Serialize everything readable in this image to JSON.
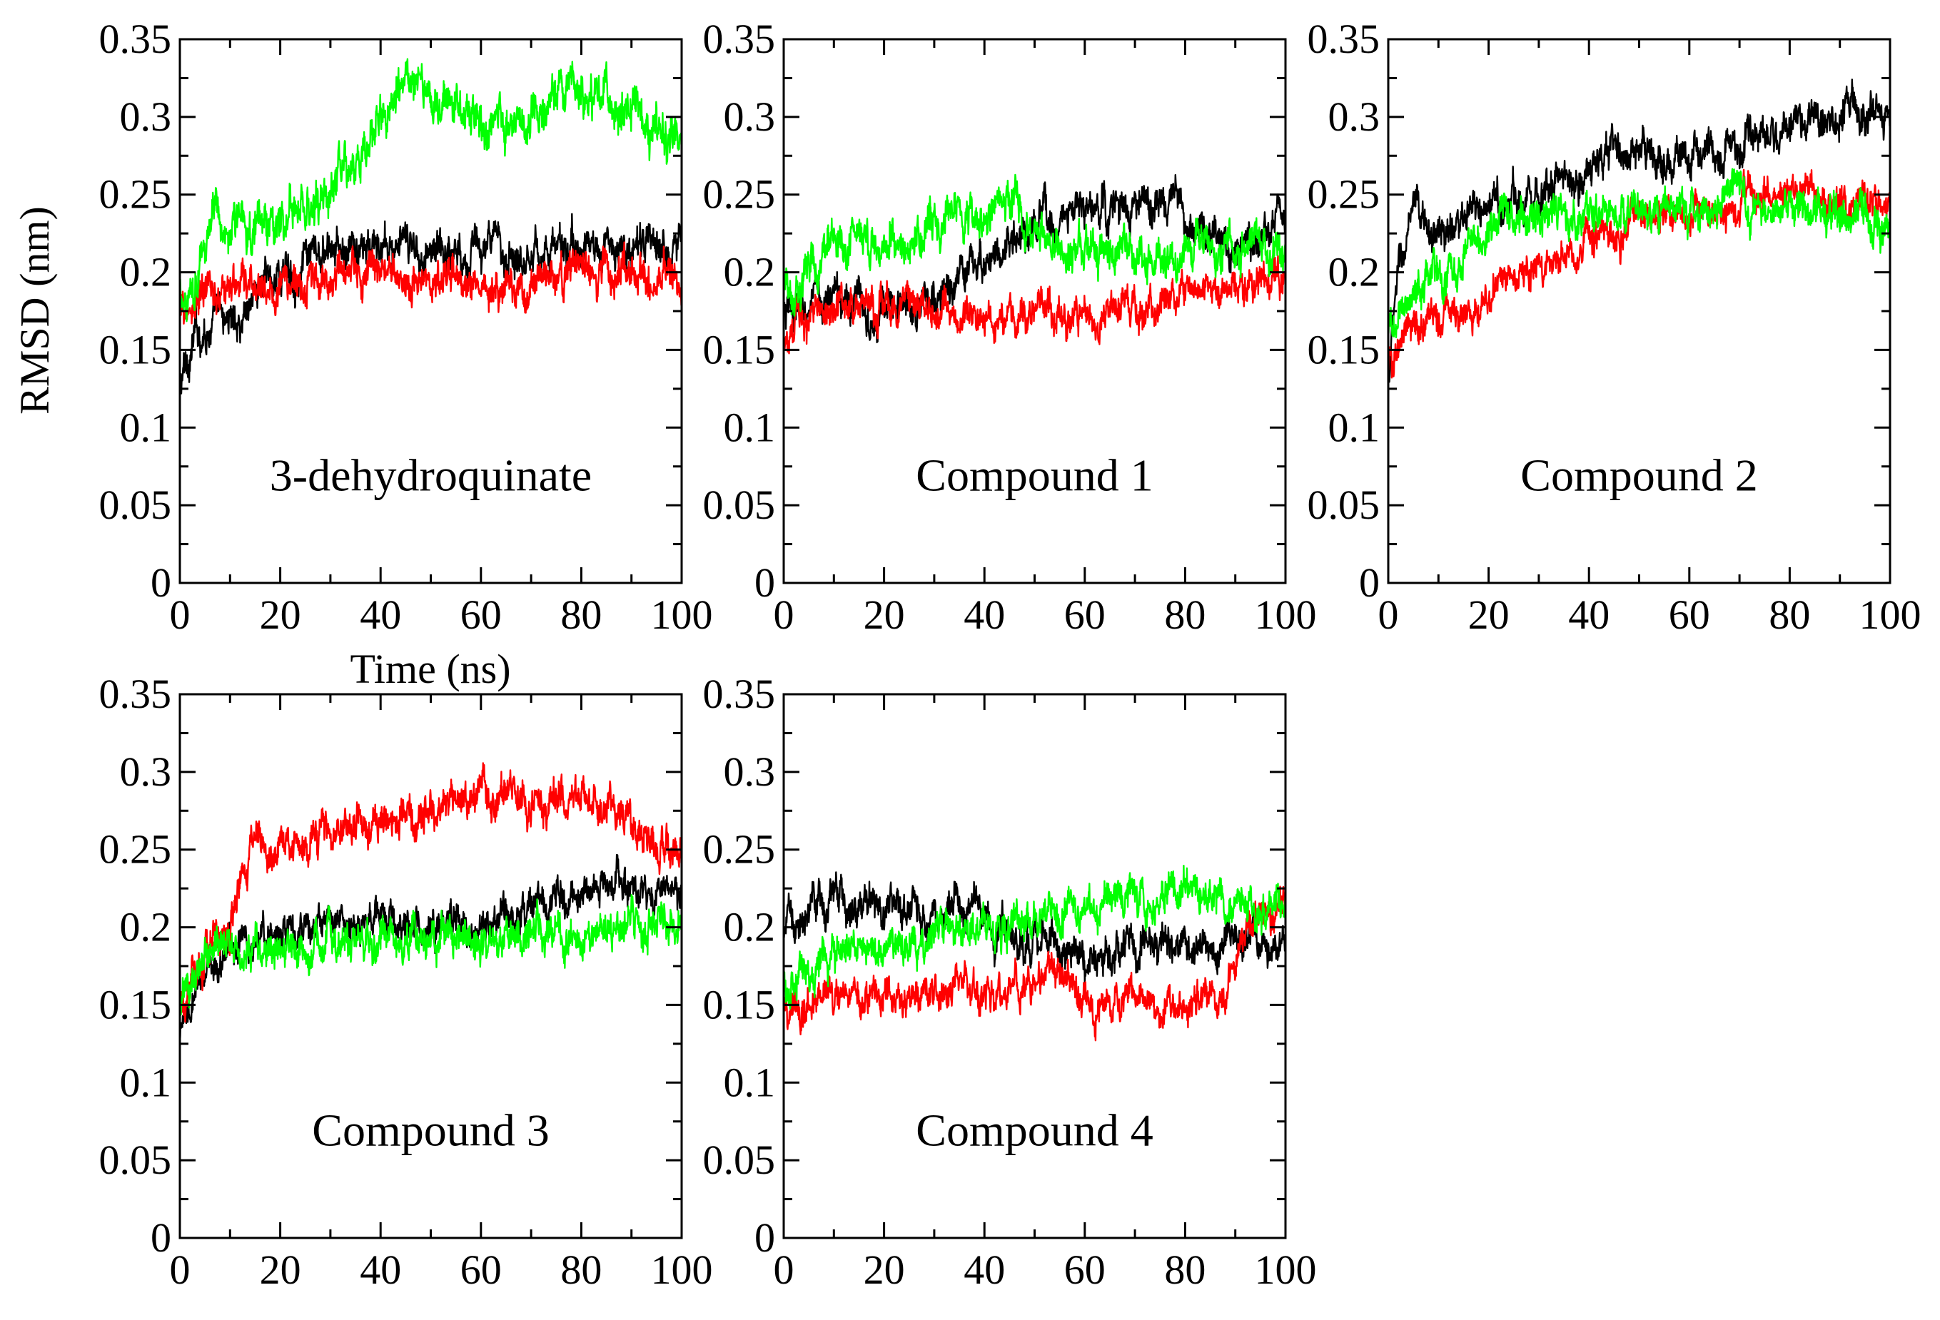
{
  "figure": {
    "ylabel": "RMSD (nm)",
    "xlabel": "Time (ns)"
  },
  "chart_data": [
    {
      "type": "line",
      "label": "3-dehydroquinate",
      "xlim": [
        0,
        100
      ],
      "ylim": [
        0,
        0.35
      ],
      "x_ticks": [
        "0",
        "20",
        "40",
        "60",
        "80",
        "100"
      ],
      "y_ticks": [
        "0",
        "0.05",
        "0.1",
        "0.15",
        "0.2",
        "0.25",
        "0.3",
        "0.35"
      ],
      "series": [
        {
          "name": "black",
          "color": "#000000",
          "noise": 0.012,
          "points": [
            [
              0,
              0.125
            ],
            [
              3,
              0.16
            ],
            [
              8,
              0.17
            ],
            [
              12,
              0.17
            ],
            [
              15,
              0.19
            ],
            [
              20,
              0.2
            ],
            [
              30,
              0.21
            ],
            [
              40,
              0.215
            ],
            [
              50,
              0.215
            ],
            [
              60,
              0.215
            ],
            [
              70,
              0.215
            ],
            [
              80,
              0.215
            ],
            [
              90,
              0.215
            ],
            [
              95,
              0.215
            ],
            [
              100,
              0.225
            ]
          ]
        },
        {
          "name": "red",
          "color": "#ff0000",
          "noise": 0.012,
          "points": [
            [
              0,
              0.17
            ],
            [
              5,
              0.185
            ],
            [
              10,
              0.19
            ],
            [
              20,
              0.19
            ],
            [
              30,
              0.195
            ],
            [
              40,
              0.2
            ],
            [
              50,
              0.195
            ],
            [
              60,
              0.195
            ],
            [
              70,
              0.195
            ],
            [
              80,
              0.2
            ],
            [
              90,
              0.2
            ],
            [
              100,
              0.195
            ]
          ]
        },
        {
          "name": "green",
          "color": "#00ff00",
          "noise": 0.014,
          "points": [
            [
              0,
              0.18
            ],
            [
              3,
              0.2
            ],
            [
              6,
              0.23
            ],
            [
              10,
              0.23
            ],
            [
              20,
              0.235
            ],
            [
              28,
              0.24
            ],
            [
              35,
              0.27
            ],
            [
              40,
              0.305
            ],
            [
              45,
              0.315
            ],
            [
              50,
              0.31
            ],
            [
              60,
              0.3
            ],
            [
              70,
              0.295
            ],
            [
              78,
              0.31
            ],
            [
              82,
              0.315
            ],
            [
              90,
              0.3
            ],
            [
              100,
              0.28
            ]
          ]
        }
      ]
    },
    {
      "type": "line",
      "label": "Compound 1",
      "xlim": [
        0,
        100
      ],
      "ylim": [
        0,
        0.35
      ],
      "x_ticks": [
        "0",
        "20",
        "40",
        "60",
        "80",
        "100"
      ],
      "y_ticks": [
        "0",
        "0.05",
        "0.1",
        "0.15",
        "0.2",
        "0.25",
        "0.3",
        "0.35"
      ],
      "series": [
        {
          "name": "black",
          "color": "#000000",
          "noise": 0.012,
          "points": [
            [
              0,
              0.17
            ],
            [
              10,
              0.185
            ],
            [
              20,
              0.175
            ],
            [
              30,
              0.18
            ],
            [
              40,
              0.21
            ],
            [
              50,
              0.225
            ],
            [
              55,
              0.235
            ],
            [
              60,
              0.24
            ],
            [
              70,
              0.24
            ],
            [
              78,
              0.245
            ],
            [
              80,
              0.225
            ],
            [
              90,
              0.22
            ],
            [
              100,
              0.235
            ]
          ]
        },
        {
          "name": "red",
          "color": "#ff0000",
          "noise": 0.011,
          "points": [
            [
              0,
              0.16
            ],
            [
              10,
              0.18
            ],
            [
              20,
              0.18
            ],
            [
              30,
              0.175
            ],
            [
              40,
              0.17
            ],
            [
              50,
              0.175
            ],
            [
              60,
              0.175
            ],
            [
              70,
              0.18
            ],
            [
              80,
              0.185
            ],
            [
              90,
              0.19
            ],
            [
              100,
              0.195
            ]
          ]
        },
        {
          "name": "green",
          "color": "#00ff00",
          "noise": 0.013,
          "points": [
            [
              0,
              0.19
            ],
            [
              10,
              0.215
            ],
            [
              20,
              0.22
            ],
            [
              30,
              0.225
            ],
            [
              40,
              0.235
            ],
            [
              45,
              0.25
            ],
            [
              50,
              0.225
            ],
            [
              55,
              0.215
            ],
            [
              60,
              0.21
            ],
            [
              70,
              0.215
            ],
            [
              80,
              0.215
            ],
            [
              90,
              0.215
            ],
            [
              100,
              0.215
            ]
          ]
        }
      ]
    },
    {
      "type": "line",
      "label": "Compound 2",
      "xlim": [
        0,
        100
      ],
      "ylim": [
        0,
        0.35
      ],
      "x_ticks": [
        "0",
        "20",
        "40",
        "60",
        "80",
        "100"
      ],
      "y_ticks": [
        "0",
        "0.05",
        "0.1",
        "0.15",
        "0.2",
        "0.25",
        "0.3",
        "0.35"
      ],
      "series": [
        {
          "name": "black",
          "color": "#000000",
          "noise": 0.012,
          "points": [
            [
              0,
              0.13
            ],
            [
              2,
              0.2
            ],
            [
              5,
              0.235
            ],
            [
              10,
              0.225
            ],
            [
              15,
              0.23
            ],
            [
              20,
              0.24
            ],
            [
              30,
              0.255
            ],
            [
              40,
              0.265
            ],
            [
              45,
              0.28
            ],
            [
              50,
              0.27
            ],
            [
              60,
              0.275
            ],
            [
              70,
              0.28
            ],
            [
              80,
              0.295
            ],
            [
              90,
              0.3
            ],
            [
              100,
              0.305
            ]
          ]
        },
        {
          "name": "red",
          "color": "#ff0000",
          "noise": 0.011,
          "points": [
            [
              0,
              0.14
            ],
            [
              5,
              0.165
            ],
            [
              10,
              0.17
            ],
            [
              15,
              0.175
            ],
            [
              20,
              0.19
            ],
            [
              30,
              0.205
            ],
            [
              40,
              0.215
            ],
            [
              50,
              0.235
            ],
            [
              60,
              0.24
            ],
            [
              70,
              0.245
            ],
            [
              80,
              0.25
            ],
            [
              90,
              0.245
            ],
            [
              100,
              0.25
            ]
          ]
        },
        {
          "name": "green",
          "color": "#00ff00",
          "noise": 0.012,
          "points": [
            [
              0,
              0.16
            ],
            [
              5,
              0.19
            ],
            [
              10,
              0.2
            ],
            [
              15,
              0.21
            ],
            [
              20,
              0.23
            ],
            [
              30,
              0.235
            ],
            [
              40,
              0.235
            ],
            [
              50,
              0.24
            ],
            [
              60,
              0.245
            ],
            [
              70,
              0.25
            ],
            [
              80,
              0.24
            ],
            [
              90,
              0.235
            ],
            [
              100,
              0.23
            ]
          ]
        }
      ]
    },
    {
      "type": "line",
      "label": "Compound 3",
      "xlim": [
        0,
        100
      ],
      "ylim": [
        0,
        0.35
      ],
      "x_ticks": [
        "0",
        "20",
        "40",
        "60",
        "80",
        "100"
      ],
      "y_ticks": [
        "0",
        "0.05",
        "0.1",
        "0.15",
        "0.2",
        "0.25",
        "0.3",
        "0.35"
      ],
      "series": [
        {
          "name": "black",
          "color": "#000000",
          "noise": 0.011,
          "points": [
            [
              0,
              0.125
            ],
            [
              5,
              0.17
            ],
            [
              10,
              0.19
            ],
            [
              20,
              0.195
            ],
            [
              30,
              0.2
            ],
            [
              40,
              0.205
            ],
            [
              50,
              0.2
            ],
            [
              60,
              0.205
            ],
            [
              70,
              0.21
            ],
            [
              80,
              0.22
            ],
            [
              85,
              0.235
            ],
            [
              90,
              0.225
            ],
            [
              100,
              0.225
            ]
          ]
        },
        {
          "name": "red",
          "color": "#ff0000",
          "noise": 0.012,
          "points": [
            [
              0,
              0.16
            ],
            [
              5,
              0.18
            ],
            [
              10,
              0.2
            ],
            [
              15,
              0.26
            ],
            [
              20,
              0.25
            ],
            [
              30,
              0.265
            ],
            [
              40,
              0.27
            ],
            [
              50,
              0.275
            ],
            [
              60,
              0.285
            ],
            [
              70,
              0.28
            ],
            [
              80,
              0.28
            ],
            [
              90,
              0.265
            ],
            [
              95,
              0.25
            ],
            [
              100,
              0.25
            ]
          ]
        },
        {
          "name": "green",
          "color": "#00ff00",
          "noise": 0.012,
          "points": [
            [
              0,
              0.15
            ],
            [
              5,
              0.185
            ],
            [
              10,
              0.19
            ],
            [
              20,
              0.185
            ],
            [
              30,
              0.19
            ],
            [
              40,
              0.19
            ],
            [
              50,
              0.195
            ],
            [
              60,
              0.19
            ],
            [
              70,
              0.195
            ],
            [
              80,
              0.195
            ],
            [
              90,
              0.2
            ],
            [
              100,
              0.2
            ]
          ]
        }
      ]
    },
    {
      "type": "line",
      "label": "Compound 4",
      "xlim": [
        0,
        100
      ],
      "ylim": [
        0,
        0.35
      ],
      "x_ticks": [
        "0",
        "20",
        "40",
        "60",
        "80",
        "100"
      ],
      "y_ticks": [
        "0",
        "0.05",
        "0.1",
        "0.15",
        "0.2",
        "0.25",
        "0.3",
        "0.35"
      ],
      "series": [
        {
          "name": "black",
          "color": "#000000",
          "noise": 0.012,
          "points": [
            [
              0,
              0.2
            ],
            [
              5,
              0.21
            ],
            [
              10,
              0.215
            ],
            [
              20,
              0.215
            ],
            [
              30,
              0.205
            ],
            [
              37,
              0.225
            ],
            [
              40,
              0.2
            ],
            [
              50,
              0.195
            ],
            [
              60,
              0.185
            ],
            [
              70,
              0.19
            ],
            [
              80,
              0.19
            ],
            [
              90,
              0.19
            ],
            [
              100,
              0.19
            ]
          ]
        },
        {
          "name": "red",
          "color": "#ff0000",
          "noise": 0.011,
          "points": [
            [
              0,
              0.15
            ],
            [
              10,
              0.155
            ],
            [
              20,
              0.155
            ],
            [
              30,
              0.16
            ],
            [
              40,
              0.16
            ],
            [
              50,
              0.165
            ],
            [
              55,
              0.17
            ],
            [
              60,
              0.15
            ],
            [
              70,
              0.15
            ],
            [
              80,
              0.15
            ],
            [
              88,
              0.16
            ],
            [
              92,
              0.2
            ],
            [
              100,
              0.215
            ]
          ]
        },
        {
          "name": "green",
          "color": "#00ff00",
          "noise": 0.012,
          "points": [
            [
              0,
              0.16
            ],
            [
              10,
              0.185
            ],
            [
              20,
              0.19
            ],
            [
              30,
              0.19
            ],
            [
              40,
              0.2
            ],
            [
              50,
              0.205
            ],
            [
              60,
              0.21
            ],
            [
              70,
              0.215
            ],
            [
              80,
              0.22
            ],
            [
              90,
              0.215
            ],
            [
              100,
              0.21
            ]
          ]
        }
      ]
    }
  ]
}
